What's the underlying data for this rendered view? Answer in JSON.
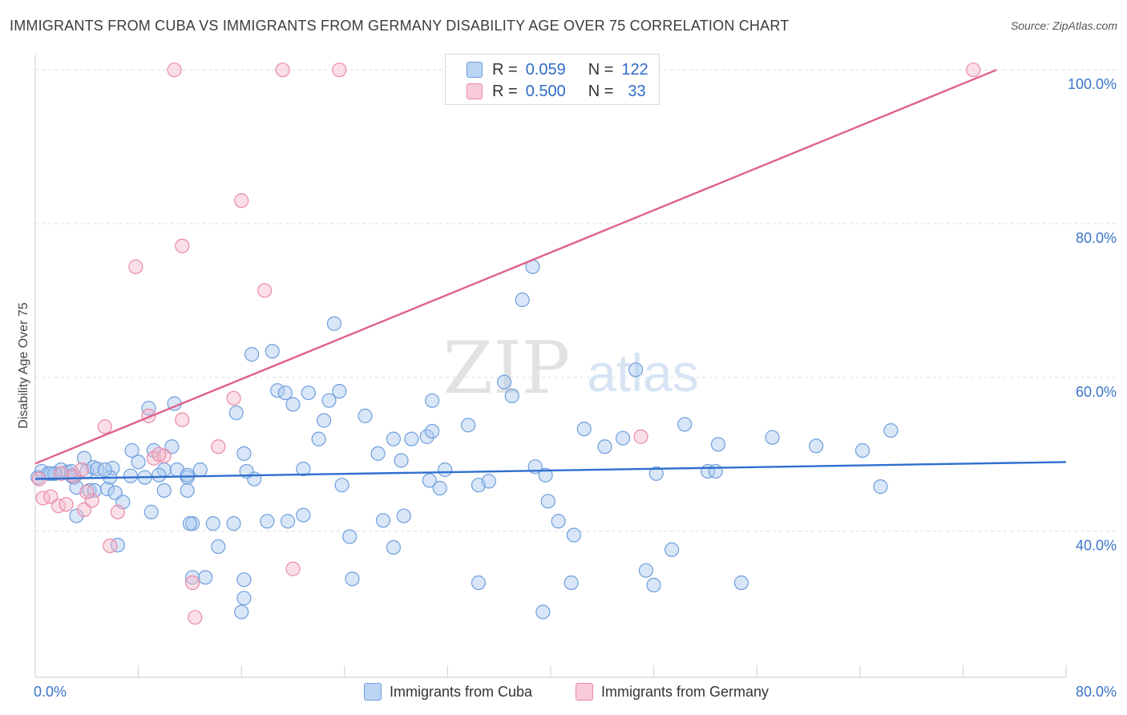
{
  "header": {
    "title": "IMMIGRANTS FROM CUBA VS IMMIGRANTS FROM GERMANY DISABILITY AGE OVER 75 CORRELATION CHART",
    "source": "Source: ZipAtlas.com"
  },
  "legend": {
    "cuba": {
      "r_label": "R =",
      "r_value": "0.059",
      "n_label": "N =",
      "n_value": "122"
    },
    "germany": {
      "r_label": "R =",
      "r_value": "0.500",
      "n_label": "N =",
      "n_value": "33"
    }
  },
  "watermark": {
    "zip": "ZIP",
    "atlas": "atlas"
  },
  "colors": {
    "cuba_fill": "#a9c8f0",
    "cuba_stroke": "#6f9fdc",
    "cuba_line": "#2f6fce",
    "germany_fill": "#f5b8c9",
    "germany_stroke": "#ea8aa6",
    "germany_line": "#e0608a",
    "tick_text": "#3a74c9",
    "grid": "#dcdcdc"
  },
  "chart_data": {
    "type": "scatter",
    "title": "IMMIGRANTS FROM CUBA VS IMMIGRANTS FROM GERMANY DISABILITY AGE OVER 75 CORRELATION CHART",
    "xlabel": "",
    "ylabel": "Disability Age Over 75",
    "xlim": [
      0,
      80
    ],
    "ylim": [
      21,
      102
    ],
    "x_tick_labels": [
      "0.0%",
      "80.0%"
    ],
    "y_ticks": [
      40,
      60,
      80,
      100
    ],
    "y_tick_labels": [
      "40.0%",
      "60.0%",
      "80.0%",
      "100.0%"
    ],
    "legend_position": "bottom",
    "series": [
      {
        "name": "Immigrants from Cuba",
        "trend": [
          [
            0,
            46.8
          ],
          [
            80,
            49.0
          ]
        ],
        "points": [
          [
            0.2,
            47
          ],
          [
            0.5,
            47.8
          ],
          [
            1,
            47.5
          ],
          [
            1.5,
            47.5
          ],
          [
            2,
            48
          ],
          [
            2.5,
            47.7
          ],
          [
            3,
            47
          ],
          [
            4,
            47.8
          ],
          [
            1.5,
            47.5
          ],
          [
            2.8,
            47.2
          ],
          [
            3.8,
            49.5
          ],
          [
            4.5,
            48.3
          ],
          [
            4.8,
            48.1
          ],
          [
            6,
            48.2
          ],
          [
            7.5,
            50.5
          ],
          [
            8,
            49
          ],
          [
            9.2,
            50.5
          ],
          [
            10,
            48
          ],
          [
            11,
            48
          ],
          [
            12.8,
            48
          ],
          [
            3.2,
            45.7
          ],
          [
            4.2,
            45.3
          ],
          [
            4.6,
            45.3
          ],
          [
            5.6,
            45.5
          ],
          [
            5.8,
            47
          ],
          [
            6.2,
            45
          ],
          [
            7.4,
            47.2
          ],
          [
            8.5,
            47
          ],
          [
            9.6,
            47.3
          ],
          [
            11.8,
            47
          ],
          [
            3.2,
            42
          ],
          [
            6.8,
            43.8
          ],
          [
            9,
            42.5
          ],
          [
            11.8,
            45.3
          ],
          [
            11.8,
            47.3
          ],
          [
            10,
            45.3
          ],
          [
            12.2,
            41
          ],
          [
            13.8,
            41
          ],
          [
            14.2,
            38
          ],
          [
            15.4,
            41
          ],
          [
            6.4,
            38.2
          ],
          [
            12.2,
            34
          ],
          [
            13.2,
            34
          ],
          [
            16.2,
            33.7
          ],
          [
            16.2,
            31.3
          ],
          [
            16,
            29.5
          ],
          [
            12,
            41
          ],
          [
            18,
            41.3
          ],
          [
            19.6,
            41.3
          ],
          [
            20.8,
            42.1
          ],
          [
            8.8,
            56
          ],
          [
            10.6,
            51
          ],
          [
            10.8,
            56.6
          ],
          [
            15.6,
            55.4
          ],
          [
            16.2,
            50.1
          ],
          [
            17,
            46.8
          ],
          [
            18.4,
            63.4
          ],
          [
            18.8,
            58.3
          ],
          [
            20,
            56.5
          ],
          [
            20.8,
            48.1
          ],
          [
            16.4,
            47.8
          ],
          [
            16.8,
            63
          ],
          [
            19.4,
            58
          ],
          [
            21.2,
            58
          ],
          [
            23.8,
            46
          ],
          [
            23.6,
            58.2
          ],
          [
            22,
            52
          ],
          [
            22.4,
            54.4
          ],
          [
            22.8,
            57
          ],
          [
            24.4,
            39.3
          ],
          [
            23.2,
            67
          ],
          [
            24.6,
            33.8
          ],
          [
            25.6,
            55
          ],
          [
            26.6,
            50.1
          ],
          [
            27,
            41.4
          ],
          [
            27.8,
            37.9
          ],
          [
            27.8,
            52
          ],
          [
            28.4,
            49.2
          ],
          [
            28.6,
            42
          ],
          [
            29.2,
            52
          ],
          [
            30.4,
            52.3
          ],
          [
            30.6,
            46.6
          ],
          [
            30.8,
            53
          ],
          [
            30.8,
            57
          ],
          [
            31.4,
            45.6
          ],
          [
            31.8,
            48
          ],
          [
            33.6,
            53.8
          ],
          [
            34.4,
            46
          ],
          [
            34.4,
            33.3
          ],
          [
            35.2,
            46.5
          ],
          [
            36.4,
            59.4
          ],
          [
            37,
            57.6
          ],
          [
            37.8,
            70.1
          ],
          [
            38.6,
            74.4
          ],
          [
            38.8,
            48.4
          ],
          [
            39.4,
            29.5
          ],
          [
            39.6,
            47.3
          ],
          [
            39.8,
            43.9
          ],
          [
            40.6,
            41.3
          ],
          [
            41.6,
            33.3
          ],
          [
            41.8,
            39.5
          ],
          [
            42.6,
            53.3
          ],
          [
            44.2,
            51
          ],
          [
            45.6,
            52.1
          ],
          [
            46.6,
            61
          ],
          [
            47.4,
            34.9
          ],
          [
            48,
            33
          ],
          [
            48.2,
            47.5
          ],
          [
            49.4,
            37.6
          ],
          [
            50.4,
            53.9
          ],
          [
            52.2,
            47.8
          ],
          [
            52.8,
            47.8
          ],
          [
            53,
            51.3
          ],
          [
            54.8,
            33.3
          ],
          [
            57.2,
            52.2
          ],
          [
            60.6,
            51.1
          ],
          [
            64.2,
            50.5
          ],
          [
            65.6,
            45.8
          ],
          [
            66.4,
            53.1
          ],
          [
            2.8,
            47.8
          ],
          [
            1.2,
            47.5
          ],
          [
            5.4,
            48
          ]
        ]
      },
      {
        "name": "Immigrants from Germany",
        "trend": [
          [
            0,
            48.8
          ],
          [
            74.6,
            100
          ]
        ],
        "points": [
          [
            0.3,
            46.8
          ],
          [
            0.6,
            44.3
          ],
          [
            1.2,
            44.5
          ],
          [
            1.8,
            43.3
          ],
          [
            2.4,
            43.5
          ],
          [
            3,
            47.2
          ],
          [
            3.8,
            42.8
          ],
          [
            4.4,
            44
          ],
          [
            5.8,
            38.1
          ],
          [
            6.4,
            42.5
          ],
          [
            5.4,
            53.6
          ],
          [
            7.8,
            74.4
          ],
          [
            8.8,
            55
          ],
          [
            9.2,
            49.5
          ],
          [
            10,
            49.8
          ],
          [
            9.6,
            50
          ],
          [
            11.4,
            54.5
          ],
          [
            12.2,
            33.3
          ],
          [
            11.4,
            77.1
          ],
          [
            14.2,
            51
          ],
          [
            15.4,
            57.3
          ],
          [
            16,
            83
          ],
          [
            17.8,
            71.3
          ],
          [
            20,
            35.1
          ],
          [
            19.2,
            100
          ],
          [
            23.6,
            100
          ],
          [
            10.8,
            100
          ],
          [
            2,
            47.5
          ],
          [
            3.6,
            48
          ],
          [
            4,
            45.1
          ],
          [
            12.4,
            28.8
          ],
          [
            47,
            52.3
          ],
          [
            72.8,
            100
          ]
        ]
      }
    ]
  },
  "bottom_legend": {
    "cuba_label": "Immigrants from Cuba",
    "germany_label": "Immigrants from Germany"
  }
}
